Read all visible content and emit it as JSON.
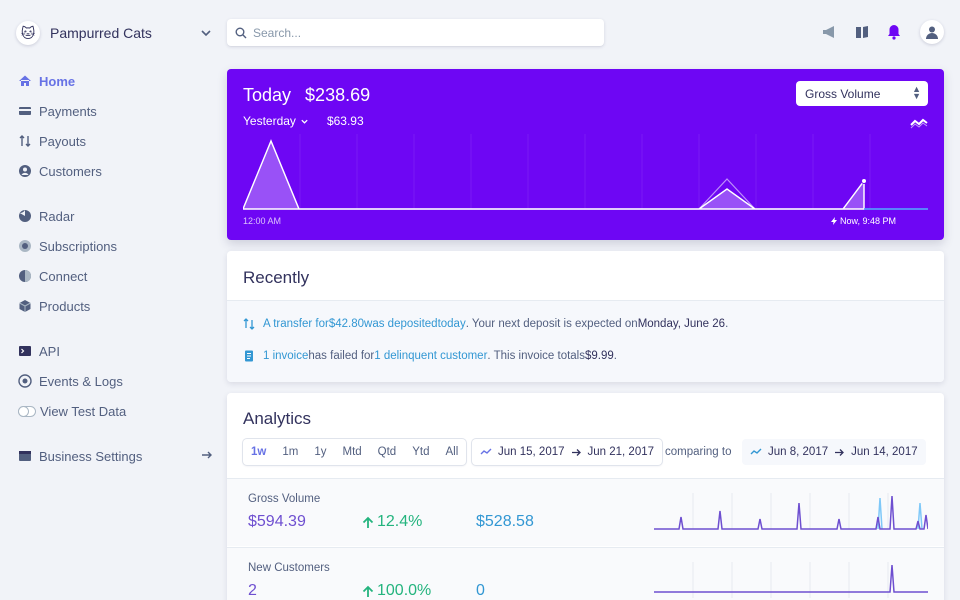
{
  "account": {
    "name": "Pampurred Cats"
  },
  "search": {
    "placeholder": "Search..."
  },
  "nav": {
    "home": "Home",
    "payments": "Payments",
    "payouts": "Payouts",
    "customers": "Customers",
    "radar": "Radar",
    "subscriptions": "Subscriptions",
    "connect": "Connect",
    "products": "Products",
    "api": "API",
    "events": "Events & Logs",
    "test_data": "View Test Data",
    "business_settings": "Business Settings"
  },
  "today": {
    "label": "Today",
    "amount": "$238.69",
    "yesterday_label": "Yesterday",
    "yesterday_amount": "$63.93",
    "metric_select": "Gross Volume",
    "start_label": "12:00 AM",
    "now_label": "Now, 9:48 PM"
  },
  "recently": {
    "title": "Recently",
    "line1": {
      "p1": "A transfer for ",
      "amount": "$42.80",
      "p2": " was deposited ",
      "today": "today",
      "p3": ". Your next deposit is expected on ",
      "date": "Monday, June 26",
      "p4": "."
    },
    "line2": {
      "invoice": "1 invoice",
      "p1": " has failed for ",
      "customer": "1 delinquent customer",
      "p2": ". This invoice totals ",
      "total": "$9.99",
      "p3": "."
    }
  },
  "analytics": {
    "title": "Analytics",
    "ranges": [
      "1w",
      "1m",
      "1y",
      "Mtd",
      "Qtd",
      "Ytd",
      "All"
    ],
    "date_from": "Jun 15, 2017",
    "date_to": "Jun 21, 2017",
    "comparing": "comparing to",
    "cmp_from": "Jun 8, 2017",
    "cmp_to": "Jun 14, 2017",
    "metrics": [
      {
        "label": "Gross Volume",
        "value": "$594.39",
        "change": "12.4%",
        "previous": "$528.58"
      },
      {
        "label": "New Customers",
        "value": "2",
        "change": "100.0%",
        "previous": "0"
      }
    ]
  },
  "colors": {
    "accent": "#6e06f4",
    "link": "#3297d3",
    "positive": "#24b47e",
    "nav_active": "#6772e5"
  }
}
